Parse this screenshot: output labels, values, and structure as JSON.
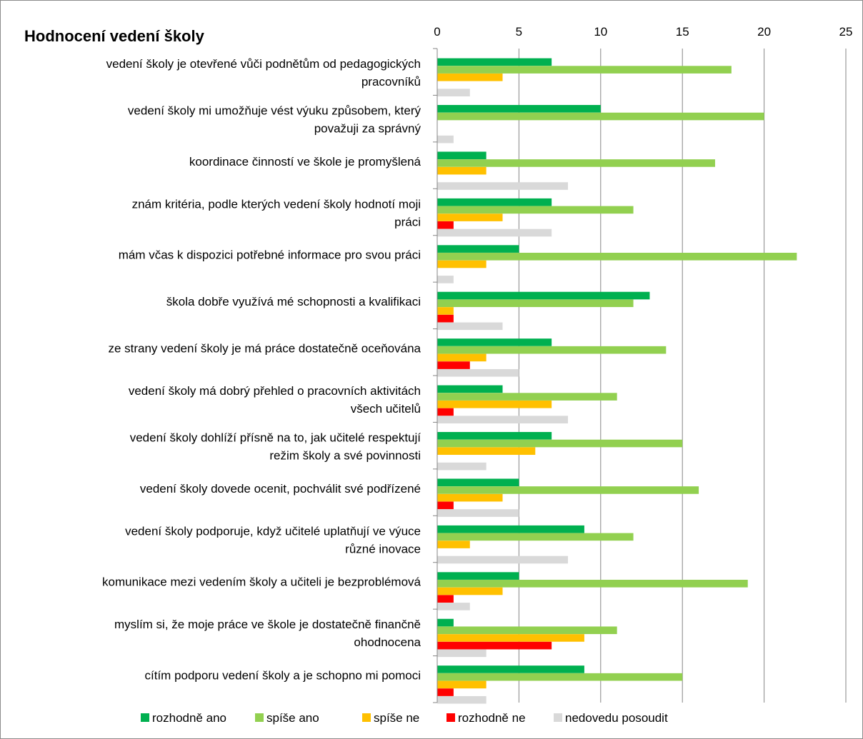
{
  "chart_data": {
    "type": "bar",
    "orientation": "horizontal",
    "title": "Hodnocení vedení školy",
    "xlim": [
      0,
      25
    ],
    "xticks": [
      0,
      5,
      10,
      15,
      20,
      25
    ],
    "axis_position": "top",
    "grid": true,
    "legend_position": "bottom",
    "categories": [
      [
        "vedení školy je otevřené vůči podnětům od pedagogických",
        "pracovníků"
      ],
      [
        "vedení školy mi umožňuje vést výuku způsobem, který",
        "považuji za správný"
      ],
      [
        "koordinace činností ve škole je promyšlená"
      ],
      [
        "znám kritéria, podle kterých vedení školy hodnotí moji",
        "práci"
      ],
      [
        "mám včas k dispozici potřebné informace pro svou práci"
      ],
      [
        "škola dobře využívá mé schopnosti a kvalifikaci"
      ],
      [
        "ze strany vedení školy je má práce dostatečně oceňována"
      ],
      [
        "vedení školy má dobrý přehled o pracovních aktivitách",
        "všech učitelů"
      ],
      [
        "vedení školy dohlíží přísně na to, jak učitelé respektují",
        "režim školy a své povinnosti"
      ],
      [
        "vedení školy dovede ocenit, pochválit své podřízené"
      ],
      [
        "vedení školy podporuje, když učitelé uplatňují ve výuce",
        "různé inovace"
      ],
      [
        "komunikace mezi vedením školy a učiteli je bezproblémová"
      ],
      [
        "myslím si, že moje práce ve škole je dostatečně finančně",
        "ohodnocena"
      ],
      [
        "cítím podporu vedení školy a je schopno mi pomoci"
      ]
    ],
    "series": [
      {
        "name": "rozhodně ano",
        "color": "#00b050",
        "values": [
          7,
          10,
          3,
          7,
          5,
          13,
          7,
          4,
          7,
          5,
          9,
          5,
          1,
          9
        ]
      },
      {
        "name": "spíše ano",
        "color": "#92d050",
        "values": [
          18,
          20,
          17,
          12,
          22,
          12,
          14,
          11,
          15,
          16,
          12,
          19,
          11,
          15
        ]
      },
      {
        "name": "spíše ne",
        "color": "#ffc000",
        "values": [
          4,
          0,
          3,
          4,
          3,
          1,
          3,
          7,
          6,
          4,
          2,
          4,
          9,
          3
        ]
      },
      {
        "name": "rozhodně ne",
        "color": "#ff0000",
        "values": [
          0,
          0,
          0,
          1,
          0,
          1,
          2,
          1,
          0,
          1,
          0,
          1,
          7,
          1
        ]
      },
      {
        "name": "nedovedu posoudit",
        "color": "#d9d9d9",
        "values": [
          2,
          1,
          8,
          7,
          1,
          4,
          5,
          8,
          3,
          5,
          8,
          2,
          3,
          3
        ]
      }
    ]
  }
}
